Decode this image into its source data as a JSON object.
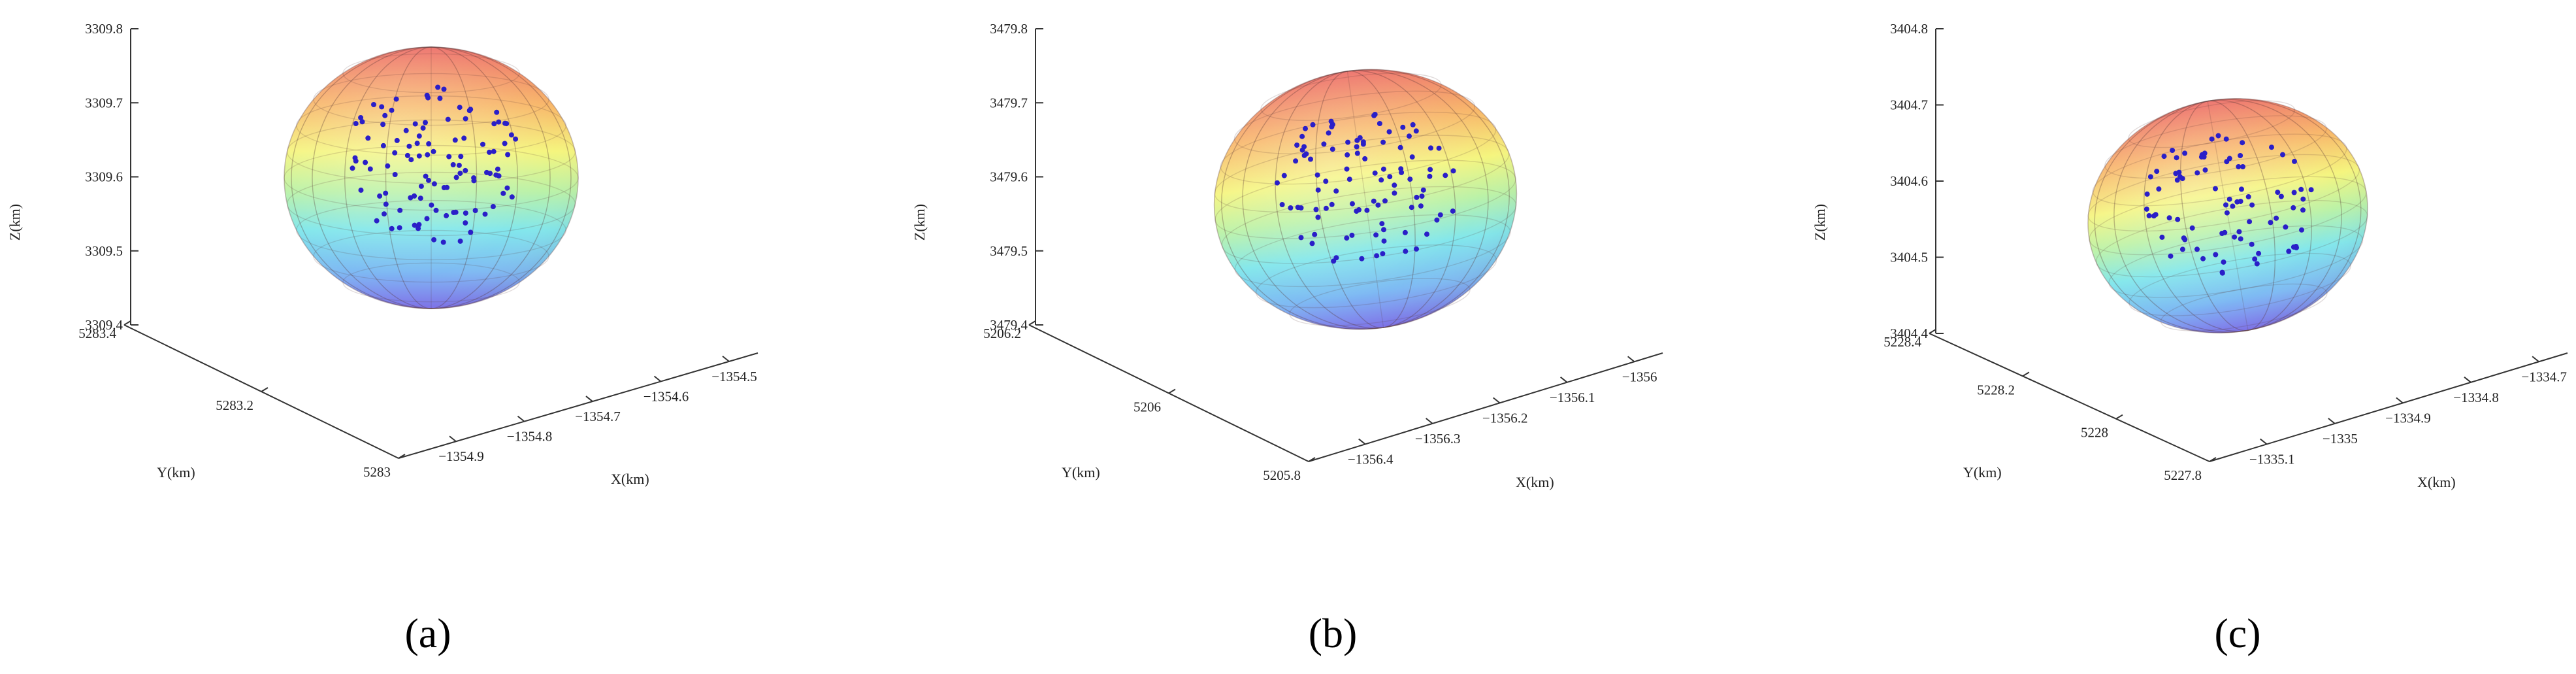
{
  "chart_data": [
    {
      "type": "scatter",
      "panel_label": "(a)",
      "xlabel": "X(km)",
      "ylabel": "Y(km)",
      "zlabel": "Z(km)",
      "x_ticks": [
        "−1354.5",
        "−1354.6",
        "−1354.7",
        "−1354.8",
        "−1354.9"
      ],
      "y_ticks": [
        "5283.4",
        "5283.2",
        "5283"
      ],
      "z_ticks": [
        "3309.8",
        "3309.7",
        "3309.6",
        "3309.5",
        "3309.4"
      ],
      "xlim": [
        -1354.9,
        -1354.5
      ],
      "ylim": [
        5283.0,
        5283.4
      ],
      "zlim": [
        3309.4,
        3309.8
      ],
      "surface": "fitted-sphere",
      "colormap": "jet",
      "grid": false
    },
    {
      "type": "scatter",
      "panel_label": "(b)",
      "xlabel": "X(km)",
      "ylabel": "Y(km)",
      "zlabel": "Z(km)",
      "x_ticks": [
        "−1356",
        "−1356.1",
        "−1356.2",
        "−1356.3",
        "−1356.4"
      ],
      "y_ticks": [
        "5206.2",
        "5206",
        "5205.8"
      ],
      "z_ticks": [
        "3479.8",
        "3479.7",
        "3479.6",
        "3479.5",
        "3479.4"
      ],
      "xlim": [
        -1356.4,
        -1356.0
      ],
      "ylim": [
        5205.8,
        5206.2
      ],
      "zlim": [
        3479.4,
        3479.8
      ],
      "surface": "fitted-sphere",
      "colormap": "jet",
      "grid": false
    },
    {
      "type": "scatter",
      "panel_label": "(c)",
      "xlabel": "X(km)",
      "ylabel": "Y(km)",
      "zlabel": "Z(km)",
      "x_ticks": [
        "−1334.7",
        "−1334.8",
        "−1334.9",
        "−1335",
        "−1335.1"
      ],
      "y_ticks": [
        "5228.4",
        "5228.2",
        "5228",
        "5227.8"
      ],
      "z_ticks": [
        "3404.8",
        "3404.7",
        "3404.6",
        "3404.5",
        "3404.4"
      ],
      "xlim": [
        -1335.1,
        -1334.7
      ],
      "ylim": [
        5227.8,
        5228.4
      ],
      "zlim": [
        3404.4,
        3404.8
      ],
      "surface": "fitted-sphere",
      "colormap": "jet",
      "grid": false
    }
  ],
  "colors": {
    "points": "#2a1fc8",
    "axes": "#333333",
    "colormap_top": "#e8463a",
    "colormap_bottom": "#4a4ae6"
  }
}
